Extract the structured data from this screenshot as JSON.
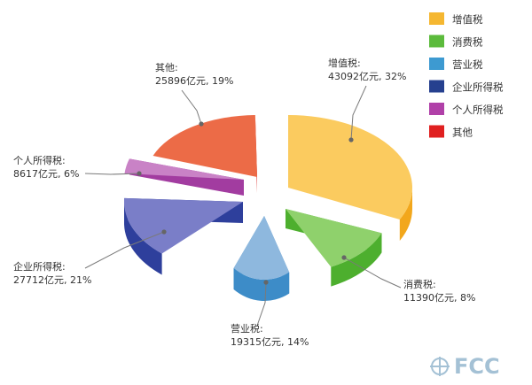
{
  "chart_data": {
    "type": "pie",
    "style": "3d-exploded",
    "legend_position": "top-right",
    "series": [
      {
        "name": "增值税",
        "value": 43092,
        "unit": "亿元",
        "percent": 32,
        "label_line1": "增值税:",
        "label_line2": "43092亿元, 32%",
        "color": "#FBCB5F",
        "side_color": "#F2A71C"
      },
      {
        "name": "消费税",
        "value": 11390,
        "unit": "亿元",
        "percent": 8,
        "label_line1": "消费税:",
        "label_line2": "11390亿元, 8%",
        "color": "#8FD16C",
        "side_color": "#4DAF2E"
      },
      {
        "name": "营业税",
        "value": 19315,
        "unit": "亿元",
        "percent": 14,
        "label_line1": "营业税:",
        "label_line2": "19315亿元, 14%",
        "color": "#8EB8DE",
        "side_color": "#3D8CC8"
      },
      {
        "name": "企业所得税",
        "value": 27712,
        "unit": "亿元",
        "percent": 21,
        "label_line1": "企业所得税:",
        "label_line2": "27712亿元, 21%",
        "color": "#7A7EC8",
        "side_color": "#2E3F9C"
      },
      {
        "name": "个人所得税",
        "value": 8617,
        "unit": "亿元",
        "percent": 6,
        "label_line1": "个人所得税:",
        "label_line2": "8617亿元, 6%",
        "color": "#C982C6",
        "side_color": "#A23CA0"
      },
      {
        "name": "其他",
        "value": 25896,
        "unit": "亿元",
        "percent": 19,
        "label_line1": "其他:",
        "label_line2": "25896亿元, 19%",
        "color": "#EC6B47",
        "side_color": "#D8201F"
      }
    ],
    "legend_colors": [
      "#F5B731",
      "#5CBB3C",
      "#3D9AD1",
      "#26408F",
      "#B040A8",
      "#E02020"
    ]
  },
  "watermark": {
    "text": "FCC"
  }
}
